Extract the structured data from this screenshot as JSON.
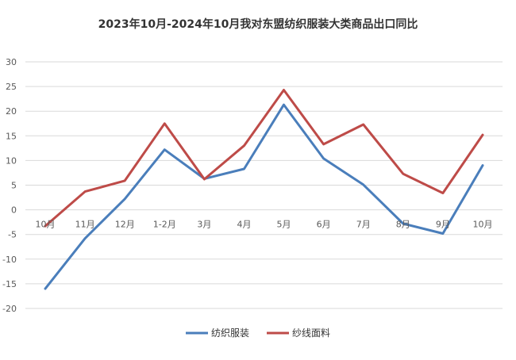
{
  "chart_data": {
    "type": "line",
    "title": "2023年10月-2024年10月我对东盟纺织服装大类商品出口同比",
    "xlabel": "",
    "ylabel": "",
    "categories": [
      "10月",
      "11月",
      "12月",
      "1-2月",
      "3月",
      "4月",
      "5月",
      "6月",
      "7月",
      "8月",
      "9月",
      "10月"
    ],
    "ylim": [
      -20,
      30
    ],
    "yticks": [
      -20,
      -15,
      -10,
      -5,
      0,
      5,
      10,
      15,
      20,
      25,
      30
    ],
    "grid": true,
    "legend_position": "bottom",
    "series": [
      {
        "name": "纺织服装",
        "color": "#4a7ebb",
        "values": [
          -16,
          -5.8,
          2.2,
          12.2,
          6.3,
          8.3,
          21.3,
          10.4,
          5.1,
          -2.8,
          -4.8,
          9.0
        ]
      },
      {
        "name": "纱线面料",
        "color": "#be4b48",
        "values": [
          -3.3,
          3.7,
          5.9,
          17.5,
          6.2,
          13.0,
          24.3,
          13.3,
          17.3,
          7.3,
          3.4,
          15.2
        ]
      }
    ]
  }
}
